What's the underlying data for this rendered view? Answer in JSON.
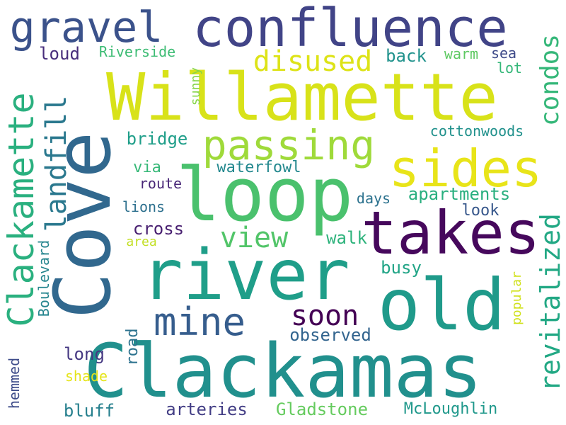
{
  "palette": {
    "background": "#ffffff",
    "colormap": "viridis"
  },
  "words": [
    {
      "text": "Clackamas",
      "color": "#21908d",
      "orientation": "horizontal"
    },
    {
      "text": "Willamette",
      "color": "#d8e219",
      "orientation": "horizontal"
    },
    {
      "text": "Cove",
      "color": "#31688e",
      "orientation": "vertical"
    },
    {
      "text": "loop",
      "color": "#4ac16d",
      "orientation": "horizontal"
    },
    {
      "text": "river",
      "color": "#1f9e89",
      "orientation": "horizontal"
    },
    {
      "text": "old",
      "color": "#1f9a8a",
      "orientation": "horizontal"
    },
    {
      "text": "takes",
      "color": "#46085c",
      "orientation": "horizontal"
    },
    {
      "text": "confluence",
      "color": "#414487",
      "orientation": "horizontal"
    },
    {
      "text": "sides",
      "color": "#e8e419",
      "orientation": "horizontal"
    },
    {
      "text": "gravel",
      "color": "#3b528b",
      "orientation": "horizontal"
    },
    {
      "text": "Clackamette",
      "color": "#2ab07f",
      "orientation": "vertical"
    },
    {
      "text": "passing",
      "color": "#9fda3a",
      "orientation": "horizontal"
    },
    {
      "text": "mine",
      "color": "#365d8d",
      "orientation": "horizontal"
    },
    {
      "text": "landfill",
      "color": "#2a788e",
      "orientation": "vertical"
    },
    {
      "text": "revitalized",
      "color": "#22a884",
      "orientation": "vertical"
    },
    {
      "text": "disused",
      "color": "#dde318",
      "orientation": "horizontal"
    },
    {
      "text": "condos",
      "color": "#35b779",
      "orientation": "vertical"
    },
    {
      "text": "view",
      "color": "#52c569",
      "orientation": "horizontal"
    },
    {
      "text": "soon",
      "color": "#440154",
      "orientation": "horizontal"
    },
    {
      "text": "Riverside",
      "color": "#3dbc74",
      "orientation": "horizontal"
    },
    {
      "text": "loud",
      "color": "#472d7b",
      "orientation": "horizontal"
    },
    {
      "text": "back",
      "color": "#20928c",
      "orientation": "horizontal"
    },
    {
      "text": "warm",
      "color": "#5ec962",
      "orientation": "horizontal"
    },
    {
      "text": "sea",
      "color": "#3e4a89",
      "orientation": "horizontal"
    },
    {
      "text": "lot",
      "color": "#35b779",
      "orientation": "horizontal"
    },
    {
      "text": "sunny",
      "color": "#86d549",
      "orientation": "vertical"
    },
    {
      "text": "bridge",
      "color": "#1f9e89",
      "orientation": "horizontal"
    },
    {
      "text": "cottonwoods",
      "color": "#21918c",
      "orientation": "horizontal"
    },
    {
      "text": "via",
      "color": "#37b878",
      "orientation": "horizontal"
    },
    {
      "text": "waterfowl",
      "color": "#23888e",
      "orientation": "horizontal"
    },
    {
      "text": "route",
      "color": "#482677",
      "orientation": "horizontal"
    },
    {
      "text": "days",
      "color": "#2c728e",
      "orientation": "horizontal"
    },
    {
      "text": "apartments",
      "color": "#29af7f",
      "orientation": "horizontal"
    },
    {
      "text": "lions",
      "color": "#2d708e",
      "orientation": "horizontal"
    },
    {
      "text": "look",
      "color": "#38588c",
      "orientation": "horizontal"
    },
    {
      "text": "cross",
      "color": "#481f70",
      "orientation": "horizontal"
    },
    {
      "text": "walk",
      "color": "#2eb37c",
      "orientation": "horizontal"
    },
    {
      "text": "area",
      "color": "#c2df23",
      "orientation": "horizontal"
    },
    {
      "text": "Boulevard",
      "color": "#25858e",
      "orientation": "vertical"
    },
    {
      "text": "busy",
      "color": "#20a486",
      "orientation": "horizontal"
    },
    {
      "text": "popular",
      "color": "#d0e11c",
      "orientation": "vertical"
    },
    {
      "text": "road",
      "color": "#2c728e",
      "orientation": "vertical"
    },
    {
      "text": "observed",
      "color": "#32648e",
      "orientation": "horizontal"
    },
    {
      "text": "long",
      "color": "#453882",
      "orientation": "horizontal"
    },
    {
      "text": "shade",
      "color": "#e5e419",
      "orientation": "horizontal"
    },
    {
      "text": "hemmed",
      "color": "#3e4c8a",
      "orientation": "vertical"
    },
    {
      "text": "bluff",
      "color": "#27808e",
      "orientation": "horizontal"
    },
    {
      "text": "arteries",
      "color": "#433e85",
      "orientation": "horizontal"
    },
    {
      "text": "Gladstone",
      "color": "#65cb5e",
      "orientation": "horizontal"
    },
    {
      "text": "McLoughlin",
      "color": "#1f988b",
      "orientation": "horizontal"
    }
  ]
}
